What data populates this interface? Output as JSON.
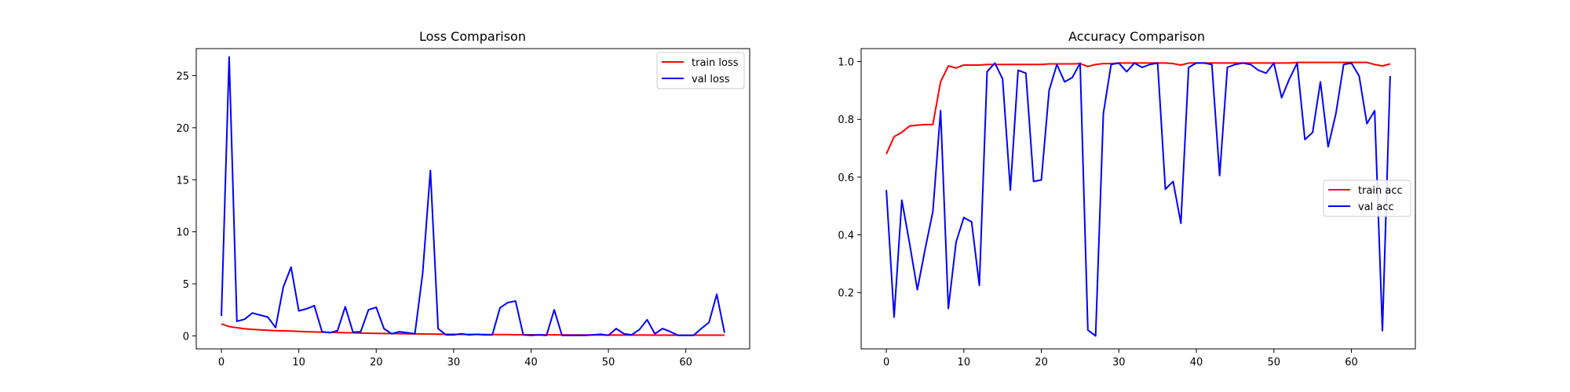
{
  "chart_data": [
    {
      "type": "line",
      "title": "Loss Comparison",
      "xlabel": "",
      "ylabel": "",
      "xlim": [
        -3.25,
        68.25
      ],
      "ylim": [
        -1.25,
        27.6
      ],
      "xticks": [
        0,
        10,
        20,
        30,
        40,
        50,
        60
      ],
      "yticks": [
        0,
        5,
        10,
        15,
        20,
        25
      ],
      "grid": false,
      "legend": "top-right",
      "series": [
        {
          "name": "train loss",
          "color": "#ff0000",
          "values": [
            1.15,
            0.9,
            0.78,
            0.68,
            0.62,
            0.58,
            0.54,
            0.5,
            0.48,
            0.46,
            0.43,
            0.4,
            0.38,
            0.36,
            0.34,
            0.32,
            0.3,
            0.29,
            0.27,
            0.26,
            0.24,
            0.23,
            0.22,
            0.21,
            0.2,
            0.19,
            0.18,
            0.17,
            0.16,
            0.15,
            0.15,
            0.14,
            0.14,
            0.13,
            0.13,
            0.12,
            0.12,
            0.12,
            0.11,
            0.11,
            0.11,
            0.1,
            0.1,
            0.1,
            0.1,
            0.09,
            0.09,
            0.09,
            0.09,
            0.09,
            0.08,
            0.08,
            0.08,
            0.08,
            0.08,
            0.08,
            0.07,
            0.07,
            0.07,
            0.07,
            0.07,
            0.07,
            0.07,
            0.07,
            0.07,
            0.07
          ]
        },
        {
          "name": "val loss",
          "color": "#0000ff",
          "values": [
            1.9,
            26.8,
            1.4,
            1.6,
            2.2,
            2.0,
            1.8,
            0.8,
            4.7,
            6.6,
            2.4,
            2.6,
            2.9,
            0.4,
            0.3,
            0.5,
            2.8,
            0.35,
            0.4,
            2.5,
            2.75,
            0.7,
            0.2,
            0.4,
            0.3,
            0.2,
            6.0,
            15.9,
            0.7,
            0.1,
            0.1,
            0.2,
            0.1,
            0.15,
            0.1,
            0.1,
            2.7,
            3.2,
            3.35,
            0.1,
            0.05,
            0.1,
            0.05,
            2.5,
            0.05,
            0.05,
            0.05,
            0.05,
            0.1,
            0.15,
            0.05,
            0.7,
            0.2,
            0.1,
            0.6,
            1.55,
            0.2,
            0.7,
            0.4,
            0.05,
            0.05,
            0.05,
            0.7,
            1.3,
            4.0,
            0.3
          ]
        }
      ]
    },
    {
      "type": "line",
      "title": "Accuracy Comparison",
      "xlabel": "",
      "ylabel": "",
      "xlim": [
        -3.25,
        68.25
      ],
      "ylim": [
        0.005,
        1.045
      ],
      "xticks": [
        0,
        10,
        20,
        30,
        40,
        50,
        60
      ],
      "yticks": [
        0.2,
        0.4,
        0.6,
        0.8,
        1.0
      ],
      "ytick_labels": [
        "0.2",
        "0.4",
        "0.6",
        "0.8",
        "1.0"
      ],
      "grid": false,
      "legend": "center-right",
      "series": [
        {
          "name": "train acc",
          "color": "#ff0000",
          "values": [
            0.68,
            0.74,
            0.755,
            0.777,
            0.78,
            0.782,
            0.782,
            0.93,
            0.985,
            0.978,
            0.988,
            0.988,
            0.988,
            0.99,
            0.99,
            0.99,
            0.99,
            0.99,
            0.99,
            0.99,
            0.99,
            0.992,
            0.992,
            0.992,
            0.992,
            0.993,
            0.983,
            0.99,
            0.993,
            0.993,
            0.995,
            0.995,
            0.995,
            0.995,
            0.995,
            0.995,
            0.995,
            0.993,
            0.988,
            0.995,
            0.995,
            0.995,
            0.995,
            0.995,
            0.995,
            0.995,
            0.995,
            0.995,
            0.995,
            0.995,
            0.995,
            0.995,
            0.995,
            0.997,
            0.997,
            0.997,
            0.997,
            0.997,
            0.997,
            0.997,
            0.997,
            0.997,
            0.997,
            0.99,
            0.985,
            0.992
          ]
        },
        {
          "name": "val acc",
          "color": "#0000ff",
          "values": [
            0.555,
            0.115,
            0.52,
            0.37,
            0.21,
            0.35,
            0.48,
            0.83,
            0.145,
            0.375,
            0.46,
            0.445,
            0.225,
            0.965,
            0.995,
            0.94,
            0.555,
            0.97,
            0.96,
            0.585,
            0.59,
            0.9,
            0.99,
            0.93,
            0.945,
            0.995,
            0.07,
            0.05,
            0.82,
            0.99,
            0.995,
            0.965,
            0.995,
            0.98,
            0.99,
            0.995,
            0.558,
            0.585,
            0.44,
            0.98,
            0.995,
            0.995,
            0.99,
            0.605,
            0.98,
            0.99,
            0.995,
            0.99,
            0.97,
            0.96,
            0.995,
            0.875,
            0.94,
            0.995,
            0.73,
            0.755,
            0.93,
            0.705,
            0.82,
            0.99,
            0.995,
            0.95,
            0.785,
            0.83,
            0.068,
            0.95
          ]
        }
      ]
    }
  ]
}
